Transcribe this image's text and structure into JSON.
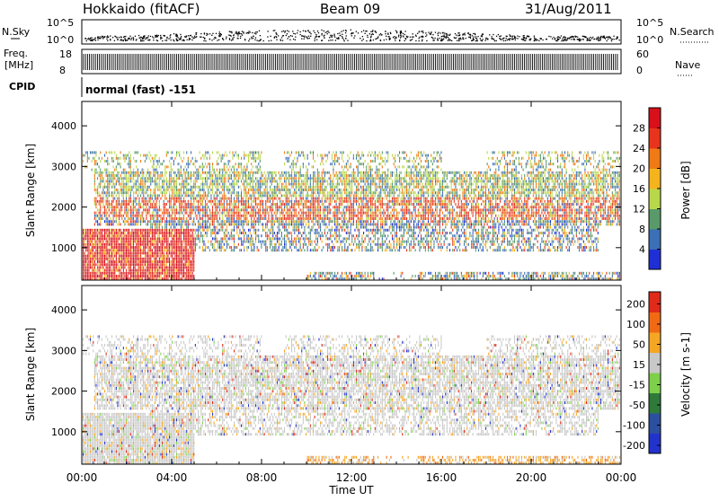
{
  "header": {
    "station": "Hokkaido (fitACF)",
    "beam": "Beam 09",
    "date": "31/Aug/2011"
  },
  "strip_labels": {
    "nsky": "N.Sky",
    "nsky_ticks": [
      "10^5",
      "10^0"
    ],
    "nsearch": "N.Search",
    "nsearch_ticks": [
      "10^5",
      "10^0"
    ],
    "freq_line1": "Freq.",
    "freq_line2": "[MHz]",
    "freq_ticks": [
      "18",
      "8"
    ],
    "nave": "Nave",
    "nave_ticks": [
      "60",
      "0"
    ],
    "cpid": "CPID",
    "cpid_text": "normal (fast) -151"
  },
  "chart_data": [
    {
      "type": "heatmap",
      "name_text": "",
      "xlabel": "",
      "ylabel": "Slant Range [km]",
      "yticks": [
        "1000",
        "2000",
        "3000",
        "4000"
      ],
      "ylim": [
        200,
        4600
      ],
      "xlim_hours": [
        0,
        24
      ],
      "colorbar": {
        "label": "Power [dB]",
        "ticks": [
          "4",
          "8",
          "12",
          "16",
          "20",
          "24",
          "28"
        ],
        "colors": [
          "#1f2fd6",
          "#3b6fb6",
          "#5a9a6a",
          "#b8d84a",
          "#f5b41d",
          "#f07a14",
          "#e8341c",
          "#d8101a"
        ]
      }
    },
    {
      "type": "heatmap",
      "xlabel": "Time UT",
      "ylabel": "Slant Range [km]",
      "yticks": [
        "1000",
        "2000",
        "3000",
        "4000"
      ],
      "ylim": [
        200,
        4600
      ],
      "xticks": [
        "00:00",
        "04:00",
        "08:00",
        "12:00",
        "16:00",
        "20:00",
        "00:00"
      ],
      "colorbar": {
        "label": "Velocity [m s-1]",
        "ticks": [
          "200",
          "100",
          "50",
          "15",
          "-15",
          "-50",
          "-100",
          "-200"
        ],
        "colors": [
          "#2233cc",
          "#2c4fa0",
          "#2f7a3a",
          "#7ed04a",
          "#c8c8c8",
          "#f5a623",
          "#f06a14",
          "#e02a1a"
        ]
      }
    }
  ]
}
